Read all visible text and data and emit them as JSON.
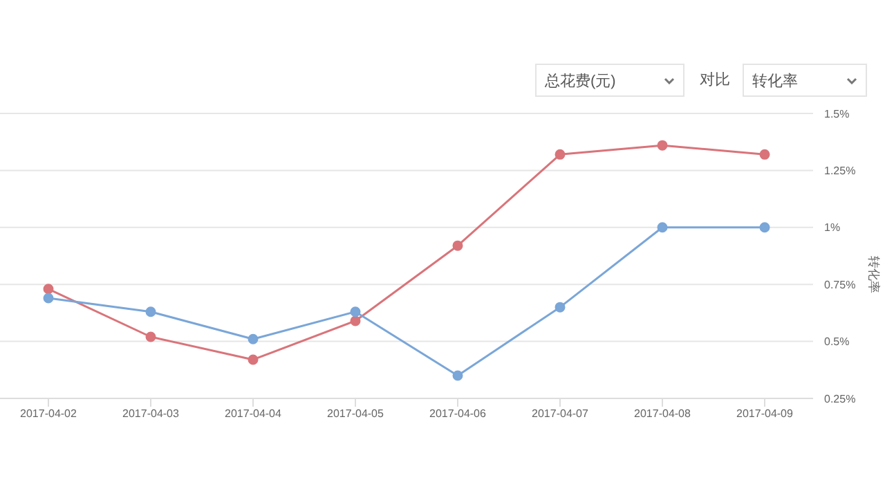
{
  "chart_data": {
    "type": "line",
    "ylabel": "转化率",
    "annotations": [
      "总花费(元)",
      "对比",
      "转化率"
    ],
    "categories": [
      "2017-04-02",
      "2017-04-03",
      "2017-04-04",
      "2017-04-05",
      "2017-04-06",
      "2017-04-07",
      "2017-04-08",
      "2017-04-09"
    ],
    "series": [
      {
        "color": "#d9747a",
        "values": [
          0.73,
          0.52,
          0.42,
          0.59,
          0.92,
          1.32,
          1.36,
          1.32
        ]
      },
      {
        "color": "#7aa6d8",
        "values": [
          0.69,
          0.63,
          0.51,
          0.63,
          0.35,
          0.65,
          1.0,
          1.0
        ]
      }
    ],
    "ylim": [
      0.25,
      1.5
    ],
    "yticks": [
      {
        "value": 0.25,
        "label": "0.25%"
      },
      {
        "value": 0.5,
        "label": "0.5%"
      },
      {
        "value": 0.75,
        "label": "0.75%"
      },
      {
        "value": 1,
        "label": "1%"
      },
      {
        "value": 1.25,
        "label": "1.25%"
      },
      {
        "value": 1.5,
        "label": "1.5%"
      }
    ],
    "grid": "y",
    "marker": "circle",
    "line_style": "solid"
  }
}
